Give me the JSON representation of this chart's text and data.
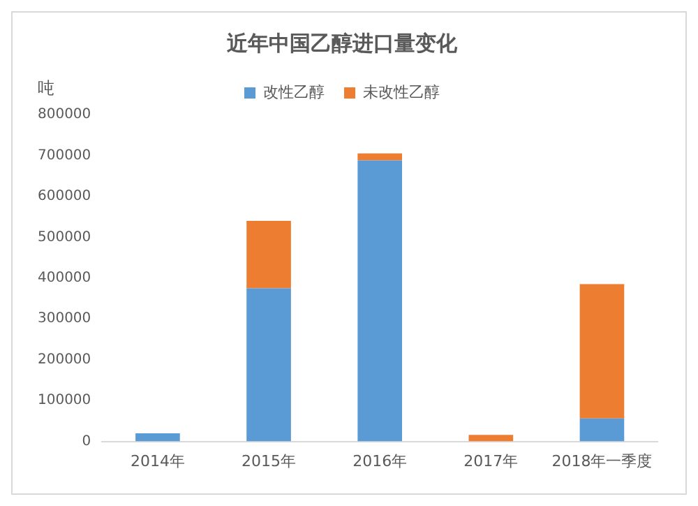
{
  "chart_data": {
    "type": "bar",
    "title": "近年中国乙醇进口量变化",
    "ylabel": "吨",
    "categories": [
      "2014年",
      "2015年",
      "2016年",
      "2017年",
      "2018年一季度"
    ],
    "series": [
      {
        "name": "改性乙醇",
        "color": "#5b9bd5",
        "values": [
          20000,
          375000,
          688000,
          0,
          56000
        ]
      },
      {
        "name": "未改性乙醇",
        "color": "#ed7d31",
        "values": [
          0,
          165000,
          17000,
          16000,
          329000
        ]
      }
    ],
    "stacked": true,
    "ylim": [
      0,
      800000
    ],
    "yticks": [
      0,
      100000,
      200000,
      300000,
      400000,
      500000,
      600000,
      700000,
      800000
    ],
    "grid": false,
    "legend": "top"
  }
}
